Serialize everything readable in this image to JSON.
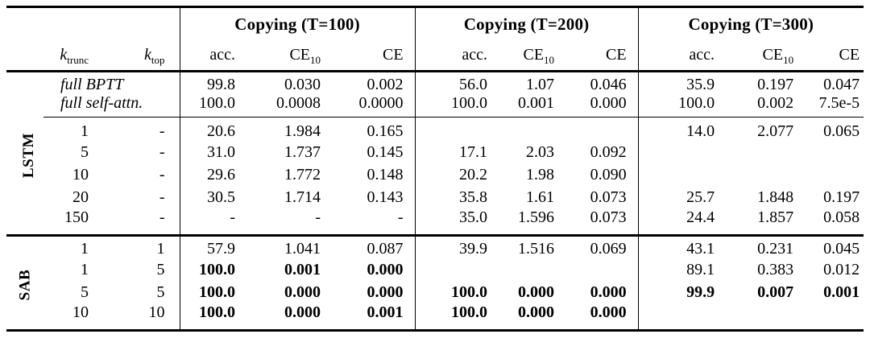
{
  "colors": {
    "text": "#000000",
    "background": "#ffffff",
    "rule": "#000000"
  },
  "table": {
    "col_groups": [
      "Copying (T=100)",
      "Copying (T=200)",
      "Copying (T=300)"
    ],
    "k_trunc": {
      "base": "k",
      "sub": "trunc"
    },
    "k_top": {
      "base": "k",
      "sub": "top"
    },
    "metrics": {
      "acc": "acc.",
      "ce": "CE",
      "ce_sub": "10"
    },
    "sections": [
      {
        "label": "LSTM",
        "rows": [
          {
            "name": "full BPTT",
            "cells": [
              "99.8",
              "0.030",
              "0.002",
              "56.0",
              "1.07",
              "0.046",
              "35.9",
              "0.197",
              "0.047"
            ],
            "bold": []
          },
          {
            "name": "full self-attn.",
            "rule_below": true,
            "cells": [
              "100.0",
              "0.0008",
              "0.0000",
              "100.0",
              "0.001",
              "0.000",
              "100.0",
              "0.002",
              "7.5e-5"
            ],
            "bold": []
          },
          {
            "ktrunc": "1",
            "ktop": "-",
            "cells": [
              "20.6",
              "1.984",
              "0.165",
              "",
              "",
              "",
              "14.0",
              "2.077",
              "0.065"
            ],
            "bold": []
          },
          {
            "ktrunc": "5",
            "ktop": "-",
            "cells": [
              "31.0",
              "1.737",
              "0.145",
              "17.1",
              "2.03",
              "0.092",
              "",
              "",
              ""
            ],
            "bold": []
          },
          {
            "ktrunc": "10",
            "ktop": "-",
            "cells": [
              "29.6",
              "1.772",
              "0.148",
              "20.2",
              "1.98",
              "0.090",
              "",
              "",
              ""
            ],
            "bold": []
          },
          {
            "ktrunc": "20",
            "ktop": "-",
            "cells": [
              "30.5",
              "1.714",
              "0.143",
              "35.8",
              "1.61",
              "0.073",
              "25.7",
              "1.848",
              "0.197"
            ],
            "bold": []
          },
          {
            "ktrunc": "150",
            "ktop": "-",
            "cells": [
              "-",
              "-",
              "-",
              "35.0",
              "1.596",
              "0.073",
              "24.4",
              "1.857",
              "0.058"
            ],
            "bold": []
          }
        ]
      },
      {
        "label": "SAB",
        "rows": [
          {
            "ktrunc": "1",
            "ktop": "1",
            "cells": [
              "57.9",
              "1.041",
              "0.087",
              "39.9",
              "1.516",
              "0.069",
              "43.1",
              "0.231",
              "0.045"
            ],
            "bold": []
          },
          {
            "ktrunc": "1",
            "ktop": "5",
            "cells": [
              "100.0",
              "0.001",
              "0.000",
              "",
              "",
              "",
              "89.1",
              "0.383",
              "0.012"
            ],
            "bold": [
              0,
              1,
              2
            ]
          },
          {
            "ktrunc": "5",
            "ktop": "5",
            "cells": [
              "100.0",
              "0.000",
              "0.000",
              "100.0",
              "0.000",
              "0.000",
              "99.9",
              "0.007",
              "0.001"
            ],
            "bold": [
              0,
              1,
              2,
              3,
              4,
              5,
              6,
              7,
              8
            ]
          },
          {
            "ktrunc": "10",
            "ktop": "10",
            "cells": [
              "100.0",
              "0.000",
              "0.001",
              "100.0",
              "0.000",
              "0.000",
              "",
              "",
              ""
            ],
            "bold": [
              0,
              1,
              2,
              3,
              4,
              5
            ]
          }
        ]
      }
    ]
  }
}
